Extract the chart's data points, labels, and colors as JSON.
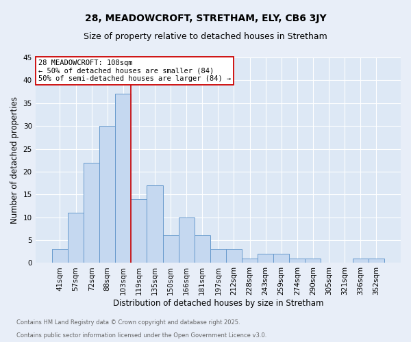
{
  "title": "28, MEADOWCROFT, STRETHAM, ELY, CB6 3JY",
  "subtitle": "Size of property relative to detached houses in Stretham",
  "xlabel": "Distribution of detached houses by size in Stretham",
  "ylabel": "Number of detached properties",
  "bar_labels": [
    "41sqm",
    "57sqm",
    "72sqm",
    "88sqm",
    "103sqm",
    "119sqm",
    "135sqm",
    "150sqm",
    "166sqm",
    "181sqm",
    "197sqm",
    "212sqm",
    "228sqm",
    "243sqm",
    "259sqm",
    "274sqm",
    "290sqm",
    "305sqm",
    "321sqm",
    "336sqm",
    "352sqm"
  ],
  "bar_values": [
    3,
    11,
    22,
    30,
    37,
    14,
    17,
    6,
    10,
    6,
    3,
    3,
    1,
    2,
    2,
    1,
    1,
    0,
    0,
    1,
    1
  ],
  "bar_color": "#c5d8f0",
  "bar_edge_color": "#6699cc",
  "vline_x": 4.5,
  "vline_color": "#cc0000",
  "ylim": [
    0,
    45
  ],
  "yticks": [
    0,
    5,
    10,
    15,
    20,
    25,
    30,
    35,
    40,
    45
  ],
  "annotation_text": "28 MEADOWCROFT: 108sqm\n← 50% of detached houses are smaller (84)\n50% of semi-detached houses are larger (84) →",
  "annotation_box_color": "white",
  "annotation_box_edge": "#cc0000",
  "footnote1": "Contains HM Land Registry data © Crown copyright and database right 2025.",
  "footnote2": "Contains public sector information licensed under the Open Government Licence v3.0.",
  "bg_color": "#e8eef8",
  "plot_bg_color": "#dde8f5",
  "grid_color": "#ffffff",
  "title_fontsize": 10,
  "subtitle_fontsize": 9,
  "xlabel_fontsize": 8.5,
  "ylabel_fontsize": 8.5,
  "tick_fontsize": 7.5,
  "annot_fontsize": 7.5,
  "footnote_fontsize": 6.0,
  "footnote_color": "#666666"
}
